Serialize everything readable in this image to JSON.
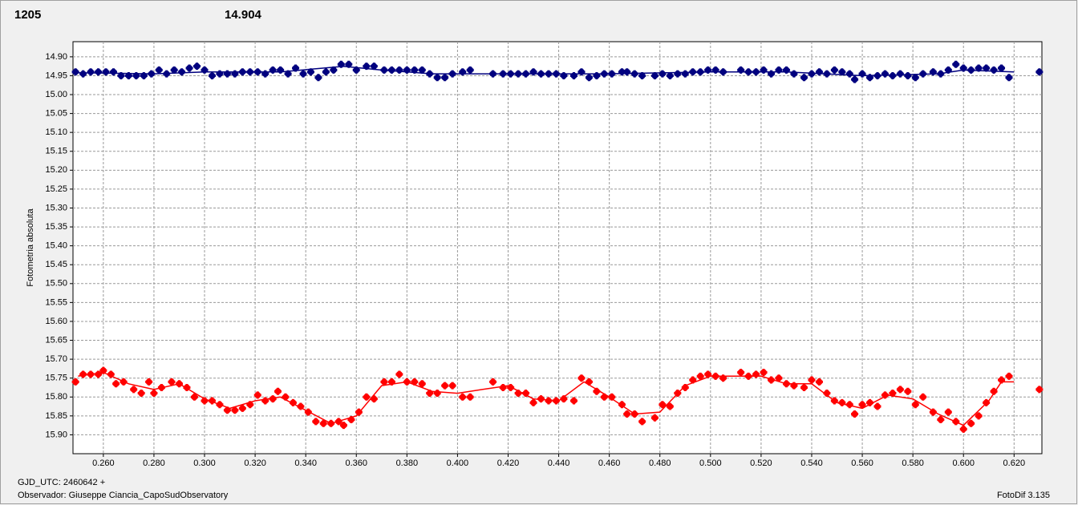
{
  "chart_data": {
    "type": "scatter",
    "title": "1205",
    "title_color": "#ff0000",
    "subtitle": "14.904",
    "subtitle_color": "#00007f",
    "ylabel": "Fotometria absoluta",
    "xlabel": "GJD_UTC: 2460642 +",
    "observer": "Observador: Giuseppe Ciancia_CapoSudObservatory",
    "software": "FotoDif 3.135",
    "grid": true,
    "xlim": [
      0.248,
      0.631
    ],
    "ylim": [
      15.95,
      14.86
    ],
    "xticks": [
      {
        "value": 0.26,
        "label": "0.260"
      },
      {
        "value": 0.28,
        "label": "0.280"
      },
      {
        "value": 0.3,
        "label": "0.300"
      },
      {
        "value": 0.32,
        "label": "0.320"
      },
      {
        "value": 0.34,
        "label": "0.340"
      },
      {
        "value": 0.36,
        "label": "0.360"
      },
      {
        "value": 0.38,
        "label": "0.380"
      },
      {
        "value": 0.4,
        "label": "0.400"
      },
      {
        "value": 0.42,
        "label": "0.420"
      },
      {
        "value": 0.44,
        "label": "0.440"
      },
      {
        "value": 0.46,
        "label": "0.460"
      },
      {
        "value": 0.48,
        "label": "0.480"
      },
      {
        "value": 0.5,
        "label": "0.500"
      },
      {
        "value": 0.52,
        "label": "0.520"
      },
      {
        "value": 0.54,
        "label": "0.540"
      },
      {
        "value": 0.56,
        "label": "0.560"
      },
      {
        "value": 0.58,
        "label": "0.580"
      },
      {
        "value": 0.6,
        "label": "0.600"
      },
      {
        "value": 0.62,
        "label": "0.620"
      }
    ],
    "yticks": [
      {
        "value": 14.9,
        "label": "14.90"
      },
      {
        "value": 14.95,
        "label": "14.95"
      },
      {
        "value": 15.0,
        "label": "15.00"
      },
      {
        "value": 15.05,
        "label": "15.05"
      },
      {
        "value": 15.1,
        "label": "15.10"
      },
      {
        "value": 15.15,
        "label": "15.15"
      },
      {
        "value": 15.2,
        "label": "15.20"
      },
      {
        "value": 15.25,
        "label": "15.25"
      },
      {
        "value": 15.3,
        "label": "15.30"
      },
      {
        "value": 15.35,
        "label": "15.35"
      },
      {
        "value": 15.4,
        "label": "15.40"
      },
      {
        "value": 15.45,
        "label": "15.45"
      },
      {
        "value": 15.5,
        "label": "15.50"
      },
      {
        "value": 15.55,
        "label": "15.55"
      },
      {
        "value": 15.6,
        "label": "15.60"
      },
      {
        "value": 15.65,
        "label": "15.65"
      },
      {
        "value": 15.7,
        "label": "15.70"
      },
      {
        "value": 15.75,
        "label": "15.75"
      },
      {
        "value": 15.8,
        "label": "15.80"
      },
      {
        "value": 15.85,
        "label": "15.85"
      },
      {
        "value": 15.9,
        "label": "15.90"
      }
    ],
    "series": [
      {
        "style": "markers",
        "color": "#ff0000",
        "x": [
          0.249,
          0.252,
          0.255,
          0.258,
          0.26,
          0.263,
          0.265,
          0.268,
          0.272,
          0.275,
          0.278,
          0.28,
          0.283,
          0.287,
          0.29,
          0.293,
          0.296,
          0.3,
          0.303,
          0.306,
          0.309,
          0.312,
          0.315,
          0.318,
          0.321,
          0.324,
          0.327,
          0.329,
          0.332,
          0.335,
          0.338,
          0.341,
          0.344,
          0.347,
          0.35,
          0.353,
          0.355,
          0.358,
          0.361,
          0.364,
          0.367,
          0.371,
          0.374,
          0.377,
          0.38,
          0.383,
          0.386,
          0.389,
          0.392,
          0.395,
          0.398,
          0.402,
          0.405,
          0.414,
          0.418,
          0.421,
          0.424,
          0.427,
          0.43,
          0.433,
          0.436,
          0.439,
          0.442,
          0.446,
          0.449,
          0.452,
          0.455,
          0.458,
          0.461,
          0.465,
          0.467,
          0.47,
          0.473,
          0.478,
          0.481,
          0.484,
          0.487,
          0.49,
          0.493,
          0.496,
          0.499,
          0.502,
          0.505,
          0.512,
          0.515,
          0.518,
          0.521,
          0.524,
          0.527,
          0.53,
          0.533,
          0.537,
          0.54,
          0.543,
          0.546,
          0.549,
          0.552,
          0.555,
          0.557,
          0.56,
          0.563,
          0.566,
          0.569,
          0.572,
          0.575,
          0.578,
          0.581,
          0.584,
          0.588,
          0.591,
          0.594,
          0.597,
          0.6,
          0.603,
          0.606,
          0.609,
          0.612,
          0.615,
          0.618,
          0.63
        ],
        "values": [
          15.76,
          15.74,
          15.74,
          15.74,
          15.73,
          15.74,
          15.765,
          15.76,
          15.78,
          15.79,
          15.76,
          15.79,
          15.775,
          15.76,
          15.765,
          15.775,
          15.8,
          15.81,
          15.81,
          15.82,
          15.835,
          15.835,
          15.83,
          15.82,
          15.795,
          15.81,
          15.805,
          15.785,
          15.8,
          15.815,
          15.825,
          15.84,
          15.865,
          15.87,
          15.87,
          15.865,
          15.875,
          15.86,
          15.84,
          15.8,
          15.805,
          15.76,
          15.76,
          15.74,
          15.76,
          15.76,
          15.765,
          15.79,
          15.79,
          15.77,
          15.77,
          15.8,
          15.8,
          15.76,
          15.775,
          15.775,
          15.79,
          15.79,
          15.815,
          15.805,
          15.81,
          15.81,
          15.805,
          15.81,
          15.75,
          15.76,
          15.785,
          15.8,
          15.8,
          15.82,
          15.845,
          15.845,
          15.865,
          15.855,
          15.82,
          15.825,
          15.79,
          15.775,
          15.755,
          15.745,
          15.74,
          15.745,
          15.75,
          15.735,
          15.745,
          15.74,
          15.735,
          15.755,
          15.75,
          15.765,
          15.77,
          15.775,
          15.755,
          15.76,
          15.79,
          15.81,
          15.815,
          15.82,
          15.845,
          15.82,
          15.815,
          15.825,
          15.795,
          15.79,
          15.78,
          15.785,
          15.82,
          15.8,
          15.84,
          15.86,
          15.84,
          15.865,
          15.885,
          15.87,
          15.85,
          15.815,
          15.785,
          15.755,
          15.745,
          15.78
        ]
      },
      {
        "style": "line",
        "color": "#ff0000",
        "x": [
          0.25,
          0.26,
          0.27,
          0.28,
          0.29,
          0.3,
          0.31,
          0.32,
          0.33,
          0.34,
          0.35,
          0.36,
          0.37,
          0.38,
          0.39,
          0.4,
          0.41,
          0.42,
          0.43,
          0.44,
          0.45,
          0.46,
          0.47,
          0.48,
          0.49,
          0.5,
          0.51,
          0.52,
          0.53,
          0.54,
          0.55,
          0.56,
          0.57,
          0.58,
          0.59,
          0.6,
          0.61,
          0.615,
          0.62
        ],
        "values": [
          15.745,
          15.735,
          15.765,
          15.78,
          15.765,
          15.805,
          15.83,
          15.81,
          15.8,
          15.835,
          15.87,
          15.85,
          15.77,
          15.76,
          15.785,
          15.79,
          15.78,
          15.77,
          15.805,
          15.81,
          15.76,
          15.8,
          15.845,
          15.84,
          15.77,
          15.745,
          15.745,
          15.745,
          15.765,
          15.765,
          15.815,
          15.83,
          15.795,
          15.805,
          15.845,
          15.875,
          15.81,
          15.76,
          15.76
        ]
      },
      {
        "style": "markers",
        "color": "#00007f",
        "x": [
          0.249,
          0.252,
          0.255,
          0.258,
          0.261,
          0.264,
          0.267,
          0.27,
          0.273,
          0.276,
          0.279,
          0.282,
          0.285,
          0.288,
          0.291,
          0.294,
          0.297,
          0.3,
          0.303,
          0.306,
          0.309,
          0.312,
          0.315,
          0.318,
          0.321,
          0.324,
          0.327,
          0.33,
          0.333,
          0.336,
          0.339,
          0.342,
          0.345,
          0.348,
          0.351,
          0.354,
          0.357,
          0.36,
          0.364,
          0.367,
          0.371,
          0.374,
          0.377,
          0.38,
          0.383,
          0.386,
          0.389,
          0.392,
          0.395,
          0.398,
          0.402,
          0.405,
          0.414,
          0.418,
          0.421,
          0.424,
          0.427,
          0.43,
          0.433,
          0.436,
          0.439,
          0.442,
          0.446,
          0.449,
          0.452,
          0.455,
          0.458,
          0.461,
          0.465,
          0.467,
          0.47,
          0.473,
          0.478,
          0.481,
          0.484,
          0.487,
          0.49,
          0.493,
          0.496,
          0.499,
          0.502,
          0.505,
          0.512,
          0.515,
          0.518,
          0.521,
          0.524,
          0.527,
          0.53,
          0.533,
          0.537,
          0.54,
          0.543,
          0.546,
          0.549,
          0.552,
          0.555,
          0.557,
          0.56,
          0.563,
          0.566,
          0.569,
          0.572,
          0.575,
          0.578,
          0.581,
          0.584,
          0.588,
          0.591,
          0.594,
          0.597,
          0.6,
          0.603,
          0.606,
          0.609,
          0.612,
          0.615,
          0.618,
          0.63
        ],
        "values": [
          14.94,
          14.945,
          14.94,
          14.94,
          14.94,
          14.94,
          14.95,
          14.95,
          14.95,
          14.95,
          14.945,
          14.935,
          14.945,
          14.935,
          14.94,
          14.93,
          14.925,
          14.935,
          14.95,
          14.945,
          14.945,
          14.945,
          14.94,
          14.94,
          14.94,
          14.945,
          14.935,
          14.935,
          14.945,
          14.93,
          14.945,
          14.94,
          14.955,
          14.94,
          14.935,
          14.92,
          14.92,
          14.935,
          14.925,
          14.925,
          14.935,
          14.935,
          14.935,
          14.935,
          14.935,
          14.935,
          14.945,
          14.955,
          14.955,
          14.945,
          14.94,
          14.935,
          14.945,
          14.945,
          14.945,
          14.945,
          14.945,
          14.94,
          14.945,
          14.945,
          14.945,
          14.95,
          14.95,
          14.94,
          14.955,
          14.95,
          14.945,
          14.945,
          14.94,
          14.94,
          14.945,
          14.95,
          14.95,
          14.945,
          14.95,
          14.945,
          14.945,
          14.94,
          14.94,
          14.935,
          14.935,
          14.94,
          14.935,
          14.94,
          14.94,
          14.935,
          14.945,
          14.935,
          14.935,
          14.945,
          14.955,
          14.945,
          14.94,
          14.945,
          14.935,
          14.94,
          14.945,
          14.96,
          14.945,
          14.955,
          14.95,
          14.945,
          14.95,
          14.945,
          14.95,
          14.955,
          14.945,
          14.94,
          14.945,
          14.935,
          14.92,
          14.93,
          14.935,
          14.93,
          14.93,
          14.935,
          14.93,
          14.955,
          14.94
        ]
      },
      {
        "style": "line",
        "color": "#00007f",
        "x": [
          0.25,
          0.28,
          0.3,
          0.33,
          0.355,
          0.37,
          0.39,
          0.42,
          0.46,
          0.5,
          0.53,
          0.56,
          0.59,
          0.6,
          0.62
        ],
        "values": [
          14.942,
          14.945,
          14.94,
          14.94,
          14.925,
          14.935,
          14.945,
          14.945,
          14.945,
          14.94,
          14.94,
          14.95,
          14.945,
          14.935,
          14.94
        ]
      }
    ]
  }
}
